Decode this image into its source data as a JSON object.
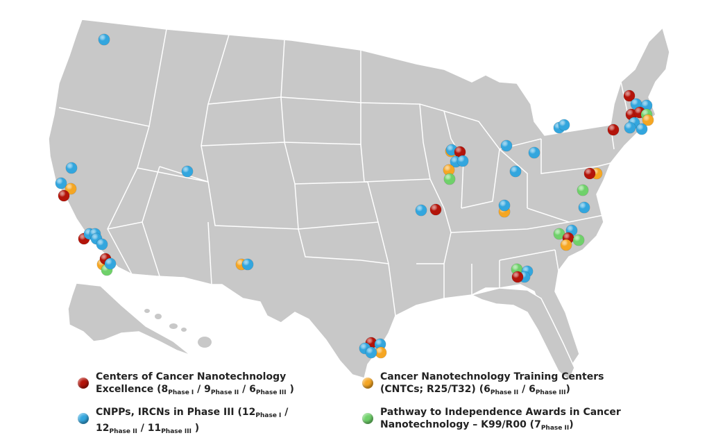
{
  "colors": {
    "land": "#c8c8c8",
    "border": "#ffffff",
    "red": "#b3140a",
    "blue": "#33a6de",
    "orange": "#f5a623",
    "green": "#6fd16a"
  },
  "legend": {
    "red": {
      "line1": "Centers of Cancer Nanotechnology",
      "l2_a": "Excellence (8",
      "l2_s1": "Phase I",
      "l2_b": " / 9",
      "l2_s2": "Phase II",
      "l2_c": " / 6",
      "l2_s3": "Phase III",
      "l2_d": " )"
    },
    "blue": {
      "l1_a": "CNPPs, IRCNs in Phase III (12",
      "l1_s1": "Phase I",
      "l1_b": " /",
      "l2_a": "12",
      "l2_s2": "Phase II",
      "l2_b": " / 11",
      "l2_s3": "Phase III",
      "l2_c": " )"
    },
    "orange": {
      "line1": "Cancer Nanotechnology Training Centers",
      "l2_a": "(CNTCs; R25/T32) (6",
      "l2_s1": "Phase II",
      "l2_b": " / 6",
      "l2_s2": "Phase III",
      "l2_c": ")"
    },
    "green": {
      "line1": "Pathway to Independence Awards in Cancer",
      "l2_a": "Nanotechnology – K99/R00 (7",
      "l2_s1": "Phase II",
      "l2_b": ")"
    }
  }
}
